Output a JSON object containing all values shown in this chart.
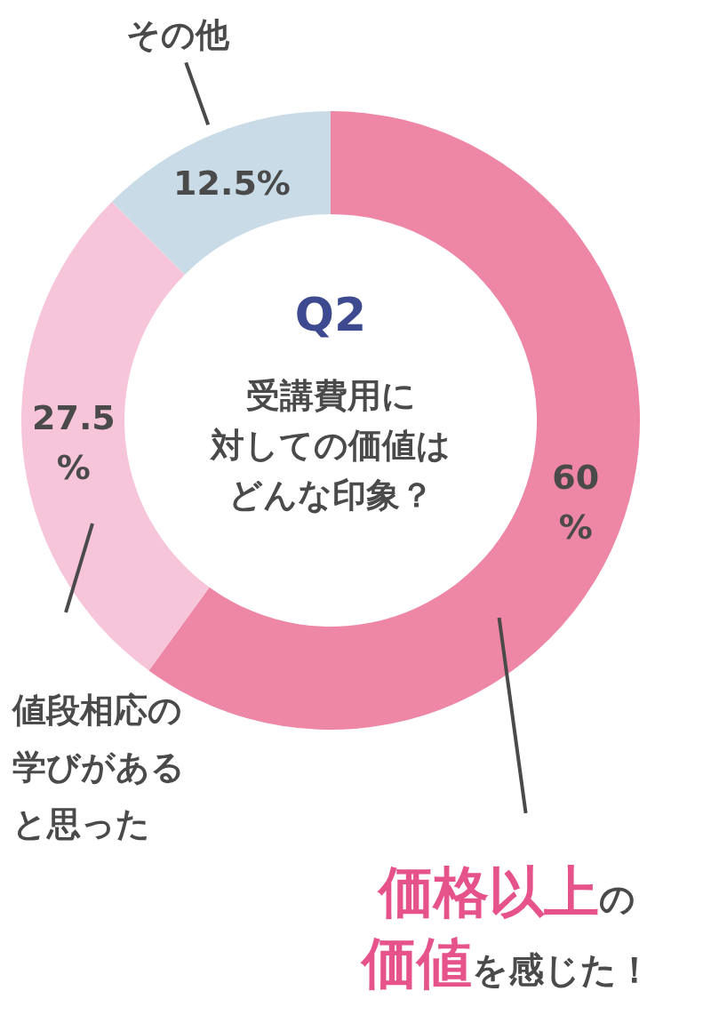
{
  "chart_data": {
    "type": "donut",
    "title": "Q2",
    "subtitle": "受講費用に対しての価値はどんな印象？",
    "categories": [
      "**価格以上**の**価値**を感じた！",
      "値段相応の学びがあると思った",
      "その他"
    ],
    "values": [
      60,
      27.5,
      12.5
    ],
    "colors": [
      "#ee86a6",
      "#f6c5da",
      "#c9dbe6"
    ],
    "value_labels": [
      "60\n%",
      "27.5\n%",
      "12.5%"
    ]
  }
}
